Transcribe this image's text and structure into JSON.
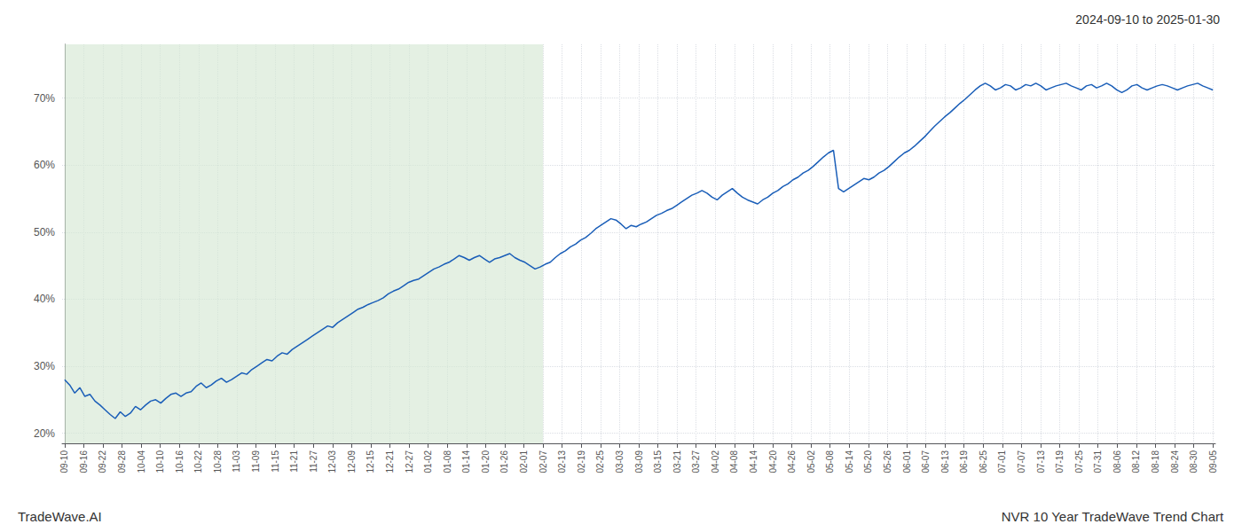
{
  "chart_data": {
    "type": "line",
    "title": "2024-09-10 to 2025-01-30",
    "annotations": [
      {
        "text": "TradeWave.AI",
        "position": "bottom-left"
      },
      {
        "text": "NVR 10 Year TradeWave Trend Chart",
        "position": "bottom-right"
      }
    ],
    "color": "#1a5eb8",
    "grid": true,
    "shaded_span": {
      "from": 0,
      "to": 94.5833333333,
      "color": "#d5e8d4"
    },
    "xlim": [
      -0.5,
      227.5
    ],
    "xticks": [
      {
        "value": 0,
        "label": "09-10"
      },
      {
        "value": 3.7833333333,
        "label": "09-16"
      },
      {
        "value": 7.5666666667,
        "label": "09-22"
      },
      {
        "value": 11.35,
        "label": "09-28"
      },
      {
        "value": 15.1333333333,
        "label": "10-04"
      },
      {
        "value": 18.9166666667,
        "label": "10-10"
      },
      {
        "value": 22.7,
        "label": "10-16"
      },
      {
        "value": 26.4833333333,
        "label": "10-22"
      },
      {
        "value": 30.2666666667,
        "label": "10-28"
      },
      {
        "value": 34.05,
        "label": "11-03"
      },
      {
        "value": 37.8333333333,
        "label": "11-09"
      },
      {
        "value": 41.6166666667,
        "label": "11-15"
      },
      {
        "value": 45.4,
        "label": "11-21"
      },
      {
        "value": 49.1833333333,
        "label": "11-27"
      },
      {
        "value": 52.9666666667,
        "label": "12-03"
      },
      {
        "value": 56.75,
        "label": "12-09"
      },
      {
        "value": 60.5333333333,
        "label": "12-15"
      },
      {
        "value": 64.3166666667,
        "label": "12-21"
      },
      {
        "value": 68.1,
        "label": "12-27"
      },
      {
        "value": 71.8833333333,
        "label": "01-02"
      },
      {
        "value": 75.6666666667,
        "label": "01-08"
      },
      {
        "value": 79.45,
        "label": "01-14"
      },
      {
        "value": 83.2333333333,
        "label": "01-20"
      },
      {
        "value": 87.0166666667,
        "label": "01-26"
      },
      {
        "value": 90.8,
        "label": "02-01"
      },
      {
        "value": 94.5833333333,
        "label": "02-07"
      },
      {
        "value": 98.3666666667,
        "label": "02-13"
      },
      {
        "value": 102.15,
        "label": "02-19"
      },
      {
        "value": 105.9333333333,
        "label": "02-25"
      },
      {
        "value": 109.7166666667,
        "label": "03-03"
      },
      {
        "value": 113.5,
        "label": "03-09"
      },
      {
        "value": 117.2833333333,
        "label": "03-15"
      },
      {
        "value": 121.0666666667,
        "label": "03-21"
      },
      {
        "value": 124.85,
        "label": "03-27"
      },
      {
        "value": 128.6333333333,
        "label": "04-02"
      },
      {
        "value": 132.4166666667,
        "label": "04-08"
      },
      {
        "value": 136.2,
        "label": "04-14"
      },
      {
        "value": 139.9833333333,
        "label": "04-20"
      },
      {
        "value": 143.7666666667,
        "label": "04-26"
      },
      {
        "value": 147.55,
        "label": "05-02"
      },
      {
        "value": 151.3333333333,
        "label": "05-08"
      },
      {
        "value": 155.1166666667,
        "label": "05-14"
      },
      {
        "value": 158.9,
        "label": "05-20"
      },
      {
        "value": 162.6833333333,
        "label": "05-26"
      },
      {
        "value": 166.4666666667,
        "label": "06-01"
      },
      {
        "value": 170.25,
        "label": "06-07"
      },
      {
        "value": 174.0333333333,
        "label": "06-13"
      },
      {
        "value": 177.8166666667,
        "label": "06-19"
      },
      {
        "value": 181.6,
        "label": "06-25"
      },
      {
        "value": 185.3833333333,
        "label": "07-01"
      },
      {
        "value": 189.1666666667,
        "label": "07-07"
      },
      {
        "value": 192.95,
        "label": "07-13"
      },
      {
        "value": 196.7333333333,
        "label": "07-19"
      },
      {
        "value": 200.5166666667,
        "label": "07-25"
      },
      {
        "value": 204.3,
        "label": "07-31"
      },
      {
        "value": 208.0833333333,
        "label": "08-06"
      },
      {
        "value": 211.8666666667,
        "label": "08-12"
      },
      {
        "value": 215.65,
        "label": "08-18"
      },
      {
        "value": 219.4333333333,
        "label": "08-24"
      },
      {
        "value": 223.2166666667,
        "label": "08-30"
      },
      {
        "value": 227,
        "label": "09-05"
      }
    ],
    "ylim": [
      0.185,
      0.78
    ],
    "yticks": [
      {
        "value": 0.2,
        "label": "20%"
      },
      {
        "value": 0.3,
        "label": "30%"
      },
      {
        "value": 0.4,
        "label": "40%"
      },
      {
        "value": 0.5,
        "label": "50%"
      },
      {
        "value": 0.6,
        "label": "60%"
      },
      {
        "value": 0.7,
        "label": "70%"
      }
    ],
    "x": [
      0,
      1,
      2,
      3,
      4,
      5,
      6,
      7,
      8,
      9,
      10,
      11,
      12,
      13,
      14,
      15,
      16,
      17,
      18,
      19,
      20,
      21,
      22,
      23,
      24,
      25,
      26,
      27,
      28,
      29,
      30,
      31,
      32,
      33,
      34,
      35,
      36,
      37,
      38,
      39,
      40,
      41,
      42,
      43,
      44,
      45,
      46,
      47,
      48,
      49,
      50,
      51,
      52,
      53,
      54,
      55,
      56,
      57,
      58,
      59,
      60,
      61,
      62,
      63,
      64,
      65,
      66,
      67,
      68,
      69,
      70,
      71,
      72,
      73,
      74,
      75,
      76,
      77,
      78,
      79,
      80,
      81,
      82,
      83,
      84,
      85,
      86,
      87,
      88,
      89,
      90,
      91,
      92,
      93,
      94,
      95,
      96,
      97,
      98,
      99,
      100,
      101,
      102,
      103,
      104,
      105,
      106,
      107,
      108,
      109,
      110,
      111,
      112,
      113,
      114,
      115,
      116,
      117,
      118,
      119,
      120,
      121,
      122,
      123,
      124,
      125,
      126,
      127,
      128,
      129,
      130,
      131,
      132,
      133,
      134,
      135,
      136,
      137,
      138,
      139,
      140,
      141,
      142,
      143,
      144,
      145,
      146,
      147,
      148,
      149,
      150,
      151,
      152,
      153,
      154,
      155,
      156,
      157,
      158,
      159,
      160,
      161,
      162,
      163,
      164,
      165,
      166,
      167,
      168,
      169,
      170,
      171,
      172,
      173,
      174,
      175,
      176,
      177,
      178,
      179,
      180,
      181,
      182,
      183,
      184,
      185,
      186,
      187,
      188,
      189,
      190,
      191,
      192,
      193,
      194,
      195,
      196,
      197,
      198,
      199,
      200,
      201,
      202,
      203,
      204,
      205,
      206,
      207,
      208,
      209,
      210,
      211,
      212,
      213,
      214,
      215,
      216,
      217,
      218,
      219,
      220,
      221,
      222,
      223,
      224,
      225,
      226,
      227
    ],
    "values": [
      0.28,
      0.272,
      0.26,
      0.268,
      0.255,
      0.258,
      0.248,
      0.242,
      0.235,
      0.228,
      0.222,
      0.232,
      0.225,
      0.23,
      0.24,
      0.235,
      0.242,
      0.248,
      0.25,
      0.245,
      0.252,
      0.258,
      0.26,
      0.255,
      0.26,
      0.262,
      0.27,
      0.275,
      0.268,
      0.272,
      0.278,
      0.282,
      0.276,
      0.28,
      0.285,
      0.29,
      0.288,
      0.295,
      0.3,
      0.305,
      0.31,
      0.308,
      0.315,
      0.32,
      0.318,
      0.325,
      0.33,
      0.335,
      0.34,
      0.345,
      0.35,
      0.355,
      0.36,
      0.358,
      0.365,
      0.37,
      0.375,
      0.38,
      0.385,
      0.388,
      0.392,
      0.395,
      0.398,
      0.402,
      0.408,
      0.412,
      0.415,
      0.42,
      0.425,
      0.428,
      0.43,
      0.435,
      0.44,
      0.445,
      0.448,
      0.452,
      0.455,
      0.46,
      0.465,
      0.462,
      0.458,
      0.462,
      0.465,
      0.46,
      0.455,
      0.46,
      0.462,
      0.465,
      0.468,
      0.462,
      0.458,
      0.455,
      0.45,
      0.445,
      0.448,
      0.452,
      0.455,
      0.462,
      0.468,
      0.472,
      0.478,
      0.482,
      0.488,
      0.492,
      0.498,
      0.505,
      0.51,
      0.515,
      0.52,
      0.518,
      0.512,
      0.505,
      0.51,
      0.508,
      0.512,
      0.515,
      0.52,
      0.525,
      0.528,
      0.532,
      0.535,
      0.54,
      0.545,
      0.55,
      0.555,
      0.558,
      0.562,
      0.558,
      0.552,
      0.548,
      0.555,
      0.56,
      0.565,
      0.558,
      0.552,
      0.548,
      0.545,
      0.542,
      0.548,
      0.552,
      0.558,
      0.562,
      0.568,
      0.572,
      0.578,
      0.582,
      0.588,
      0.592,
      0.598,
      0.605,
      0.612,
      0.618,
      0.622,
      0.565,
      0.56,
      0.565,
      0.57,
      0.575,
      0.58,
      0.578,
      0.582,
      0.588,
      0.592,
      0.598,
      0.605,
      0.612,
      0.618,
      0.622,
      0.628,
      0.635,
      0.642,
      0.65,
      0.658,
      0.665,
      0.672,
      0.678,
      0.685,
      0.692,
      0.698,
      0.705,
      0.712,
      0.718,
      0.722,
      0.718,
      0.712,
      0.715,
      0.72,
      0.718,
      0.712,
      0.715,
      0.72,
      0.718,
      0.722,
      0.718,
      0.712,
      0.715,
      0.718,
      0.72,
      0.722,
      0.718,
      0.715,
      0.712,
      0.718,
      0.72,
      0.715,
      0.718,
      0.722,
      0.718,
      0.712,
      0.708,
      0.712,
      0.718,
      0.72,
      0.715,
      0.712,
      0.715,
      0.718,
      0.72,
      0.718,
      0.715,
      0.712,
      0.715,
      0.718,
      0.72,
      0.722,
      0.718,
      0.715,
      0.712
    ]
  }
}
